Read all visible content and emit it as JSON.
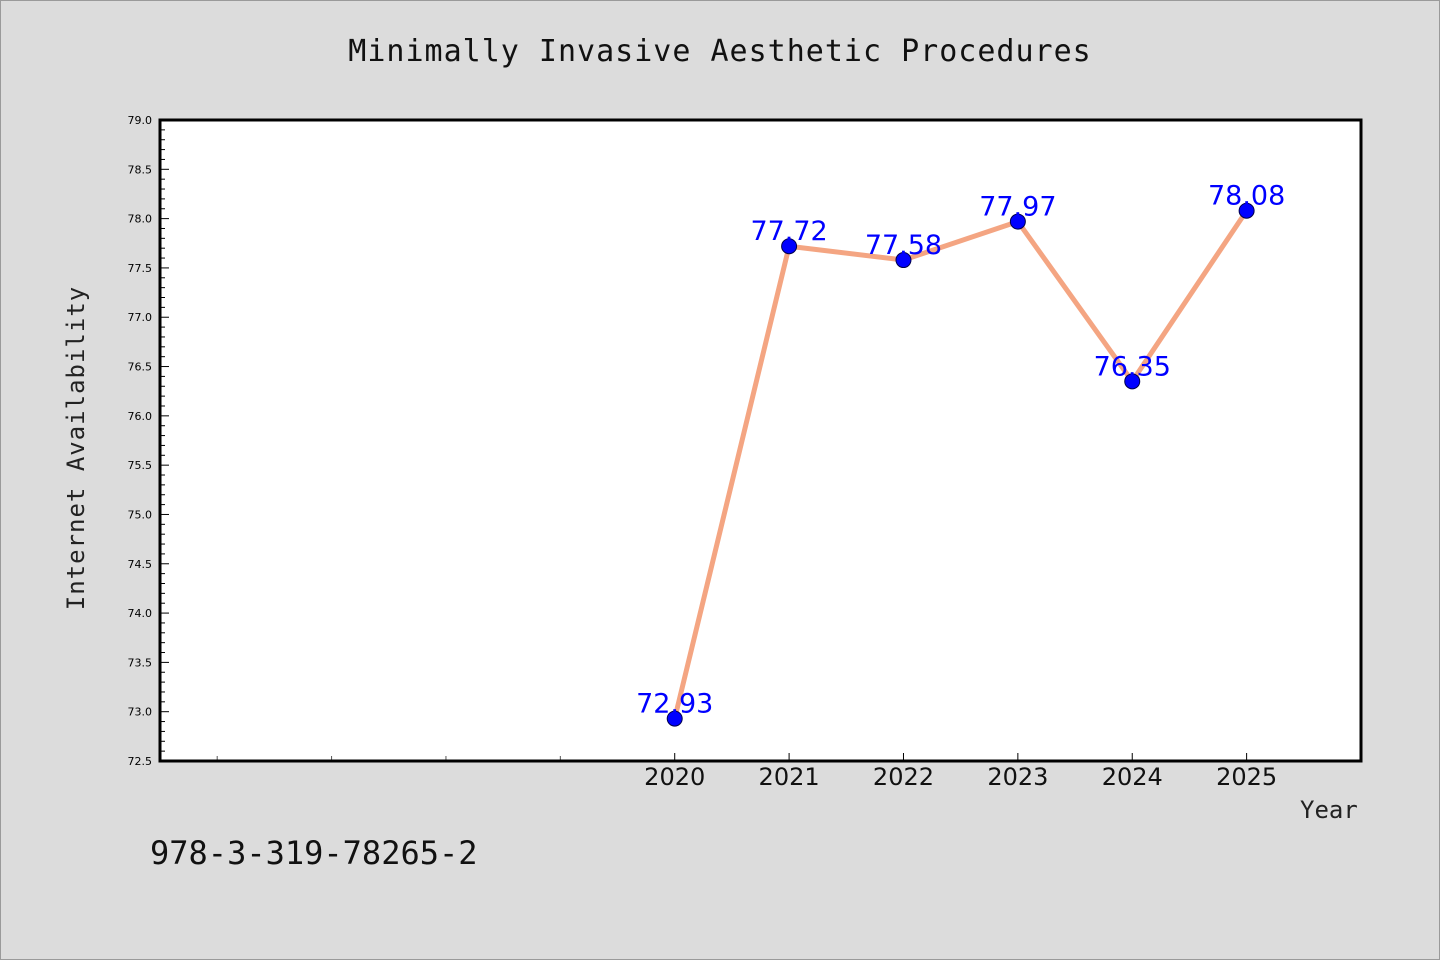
{
  "chart_data": {
    "type": "line",
    "title": "Minimally Invasive Aesthetic Procedures",
    "xlabel": "Year",
    "ylabel": "Internet Availability",
    "x": [
      2020,
      2021,
      2022,
      2023,
      2024,
      2025
    ],
    "series": [
      {
        "values": [
          72.93,
          77.72,
          77.58,
          77.97,
          76.35,
          78.08
        ]
      }
    ],
    "data_labels": [
      "72.93",
      "77.72",
      "77.58",
      "77.97",
      "76.35",
      "78.08"
    ],
    "xlim": [
      2015.5,
      2026.0
    ],
    "ylim": [
      72.5,
      79.0
    ],
    "yticks": [
      "72.5",
      "73.0",
      "73.5",
      "74.0",
      "74.5",
      "75.0",
      "75.5",
      "76.0",
      "76.5",
      "77.0",
      "77.5",
      "78.0",
      "78.5",
      "79.0"
    ],
    "xticks_labeled": [
      2020,
      2021,
      2022,
      2023,
      2024,
      2025
    ],
    "xticks_unlabeled": [
      2016,
      2017,
      2018,
      2019
    ],
    "grid": false,
    "colors": {
      "line": "#f4a582",
      "marker": "#0000ff",
      "label": "#0000ff"
    }
  },
  "footnote": "978-3-319-78265-2"
}
